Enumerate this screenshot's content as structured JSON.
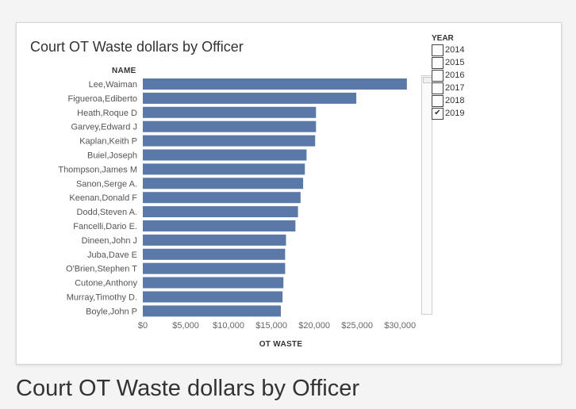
{
  "caption": "Court OT Waste dollars by Officer",
  "chart_data": {
    "type": "bar",
    "orientation": "horizontal",
    "title": "Court OT Waste dollars by Officer",
    "category_header": "NAME",
    "xlabel": "OT WASTE",
    "ylabel": "",
    "xlim": [
      0,
      32000
    ],
    "xticks": [
      0,
      5000,
      10000,
      15000,
      20000,
      25000,
      30000
    ],
    "xtick_labels": [
      "$0",
      "$5,000",
      "$10,000",
      "$15,000",
      "$20,000",
      "$25,000",
      "$30,000"
    ],
    "grid": false,
    "color": "#5b79a8",
    "categories": [
      "Lee,Waiman",
      "Figueroa,Ediberto",
      "Heath,Roque D",
      "Garvey,Edward J",
      "Kaplan,Keith P",
      "Buiel,Joseph",
      "Thompson,James M",
      "Sanon,Serge A.",
      "Keenan,Donald F",
      "Dodd,Steven A.",
      "Fancelli,Dario E.",
      "Dineen,John J",
      "Juba,Dave E",
      "O'Brien,Stephen T",
      "Cutone,Anthony",
      "Murray,Timothy D.",
      "Boyle,John P"
    ],
    "values": [
      30800,
      24900,
      20200,
      20200,
      20100,
      19100,
      18900,
      18700,
      18400,
      18100,
      17800,
      16700,
      16600,
      16600,
      16400,
      16300,
      16100
    ]
  },
  "filter": {
    "title": "YEAR",
    "items": [
      {
        "label": "2014",
        "checked": false
      },
      {
        "label": "2015",
        "checked": false
      },
      {
        "label": "2016",
        "checked": false
      },
      {
        "label": "2017",
        "checked": false
      },
      {
        "label": "2018",
        "checked": false
      },
      {
        "label": "2019",
        "checked": true
      }
    ]
  }
}
